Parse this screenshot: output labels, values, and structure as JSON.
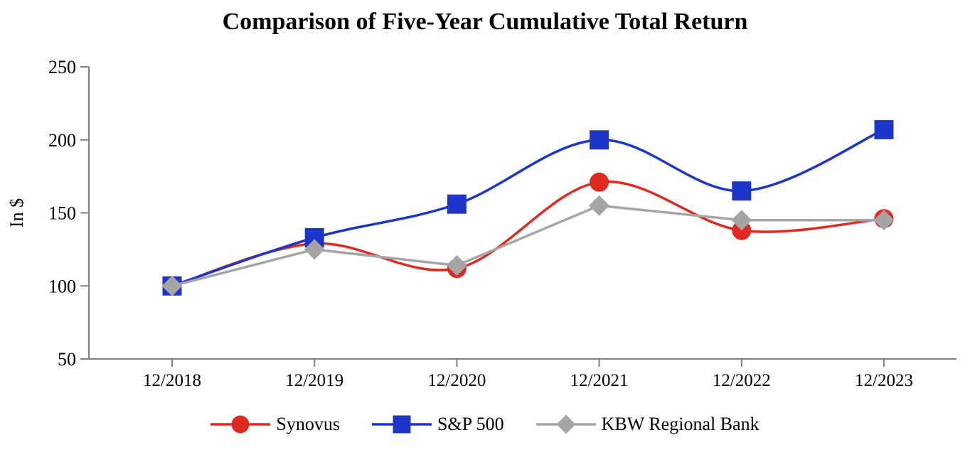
{
  "chart_data": {
    "type": "line",
    "title": "Comparison of Five-Year Cumulative Total Return",
    "ylabel": "In $",
    "xlabel": "",
    "categories": [
      "12/2018",
      "12/2019",
      "12/2020",
      "12/2021",
      "12/2022",
      "12/2023"
    ],
    "y_ticks": [
      250,
      200,
      150,
      100,
      50
    ],
    "ylim": [
      50,
      250
    ],
    "grid": false,
    "legend_position": "bottom",
    "axis_color": "#808080",
    "series": [
      {
        "name": "Synovus",
        "marker": "circle",
        "color": "#E02A21",
        "smooth": true,
        "values": [
          100,
          129,
          112,
          171,
          138,
          146
        ]
      },
      {
        "name": "S&P 500",
        "marker": "square",
        "color": "#1D35C8",
        "smooth": true,
        "values": [
          100,
          133,
          156,
          200,
          165,
          207
        ]
      },
      {
        "name": "KBW Regional Bank",
        "marker": "diamond",
        "color": "#A5A5A5",
        "smooth": false,
        "values": [
          100,
          125,
          114,
          155,
          145,
          145
        ]
      }
    ]
  }
}
